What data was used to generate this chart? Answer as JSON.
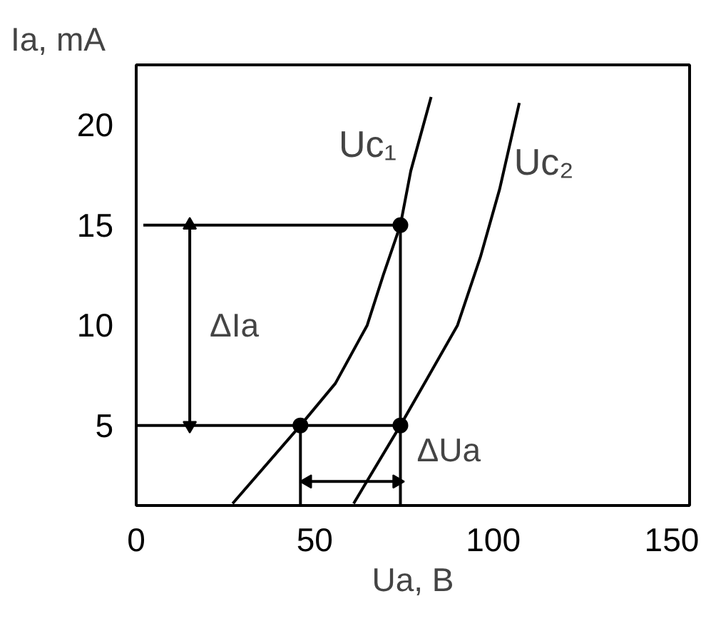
{
  "chart_data": {
    "type": "line",
    "xlabel": "Ua, B",
    "ylabel": "Ia, mA",
    "xlim": [
      0,
      155
    ],
    "ylim": [
      1,
      23
    ],
    "xticks": [
      0,
      50,
      100,
      150
    ],
    "yticks": [
      5,
      10,
      15,
      20
    ],
    "grid": false,
    "legend": false,
    "marker": "none",
    "line_style": "solid",
    "series": [
      {
        "name": "Uc₁",
        "color": "#000000",
        "x": [
          27,
          46,
          55.8,
          64.7,
          69.2,
          74,
          76.9,
          82.6
        ],
        "values": [
          1.1,
          5,
          7.1,
          10,
          12.5,
          15,
          17.7,
          21.4
        ]
      },
      {
        "name": "Uc₂",
        "color": "#000000",
        "x": [
          60.9,
          74,
          81.7,
          90,
          96.4,
          101.8,
          107.3
        ],
        "values": [
          1.1,
          5,
          7.4,
          10,
          13.4,
          16.8,
          21.1
        ]
      },
      {
        "type": "scatter",
        "color": "#000000",
        "marker": "circle",
        "x": [
          46,
          74,
          74
        ],
        "values": [
          5,
          15,
          5
        ]
      },
      {
        "color": "#000000",
        "x": [
          2,
          74
        ],
        "values": [
          15,
          15
        ]
      },
      {
        "color": "#000000",
        "x": [
          0,
          74
        ],
        "values": [
          5,
          5
        ]
      },
      {
        "color": "#000000",
        "x": [
          46,
          46
        ],
        "values": [
          1,
          5
        ]
      },
      {
        "color": "#000000",
        "x": [
          74,
          74
        ],
        "values": [
          1,
          15
        ]
      },
      {
        "color": "#000000",
        "marker": "triangle",
        "x": [
          15,
          15
        ],
        "values": [
          15,
          5
        ]
      },
      {
        "color": "#000000",
        "marker": "triangle",
        "x": [
          48,
          73
        ],
        "values": [
          2.2,
          2.2
        ]
      }
    ],
    "annotations": [
      "ΔIa",
      "ΔUa"
    ]
  }
}
